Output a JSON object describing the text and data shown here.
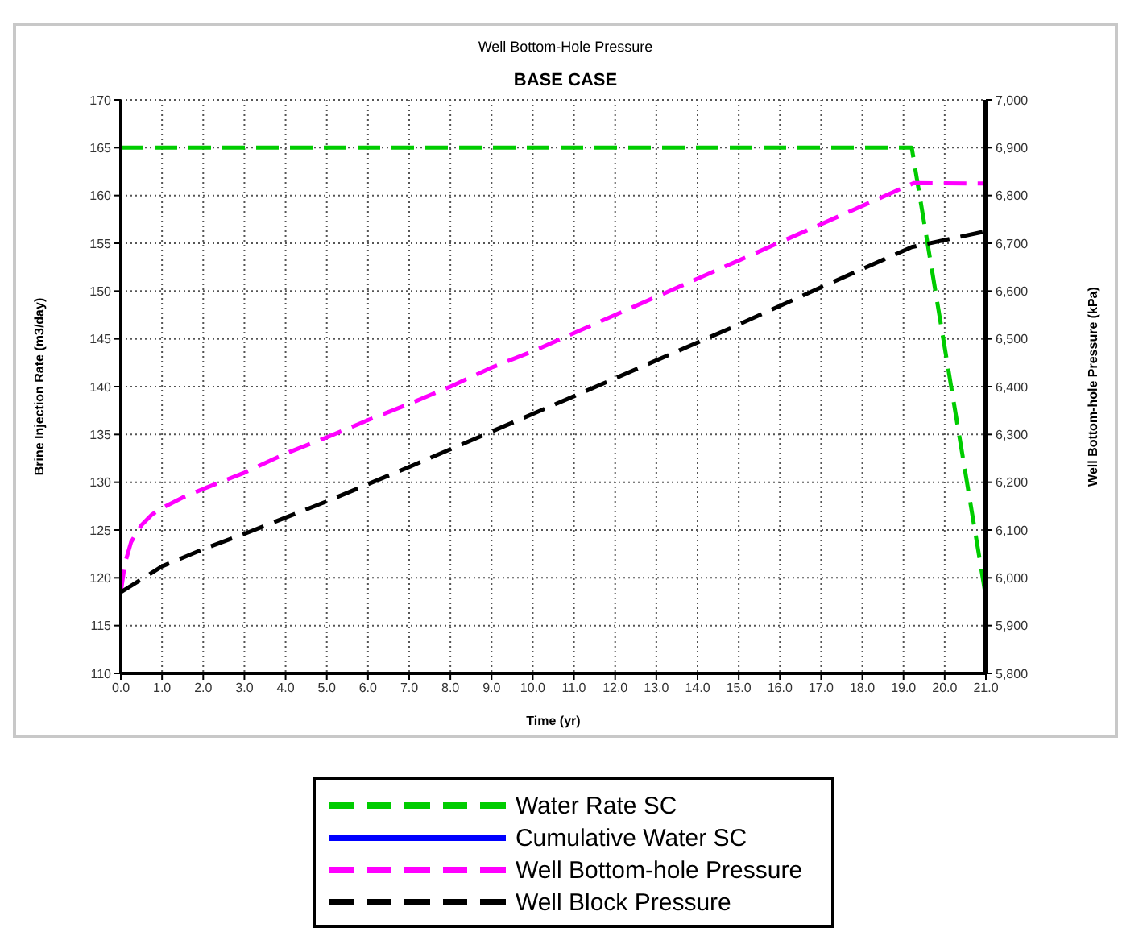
{
  "chart_data": {
    "type": "line",
    "title": "Well Bottom-Hole Pressure",
    "subtitle": "BASE CASE",
    "xlabel": "Time (yr)",
    "ylabel": "Brine Injection Rate (m3/day)",
    "y2label": "Well Bottom-hole Pressure (kPa)",
    "xlim": [
      0,
      21
    ],
    "xticks": [
      {
        "value": 0,
        "label": "0.0"
      },
      {
        "value": 1,
        "label": "1.0"
      },
      {
        "value": 2,
        "label": "2.0"
      },
      {
        "value": 3,
        "label": "3.0"
      },
      {
        "value": 4,
        "label": "4.0"
      },
      {
        "value": 5,
        "label": "5.0"
      },
      {
        "value": 6,
        "label": "6.0"
      },
      {
        "value": 7,
        "label": "7.0"
      },
      {
        "value": 8,
        "label": "8.0"
      },
      {
        "value": 9,
        "label": "9.0"
      },
      {
        "value": 10,
        "label": "10.0"
      },
      {
        "value": 11,
        "label": "11.0"
      },
      {
        "value": 12,
        "label": "12.0"
      },
      {
        "value": 13,
        "label": "13.0"
      },
      {
        "value": 14,
        "label": "14.0"
      },
      {
        "value": 15,
        "label": "15.0"
      },
      {
        "value": 16,
        "label": "16.0"
      },
      {
        "value": 17,
        "label": "17.0"
      },
      {
        "value": 18,
        "label": "18.0"
      },
      {
        "value": 19,
        "label": "19.0"
      },
      {
        "value": 20,
        "label": "20.0"
      },
      {
        "value": 21,
        "label": "21.0"
      }
    ],
    "ylim": [
      110,
      170
    ],
    "yticks": [
      110,
      115,
      120,
      125,
      130,
      135,
      140,
      145,
      150,
      155,
      160,
      165,
      170
    ],
    "y2lim": [
      5800,
      7000
    ],
    "y2ticks": [
      {
        "value": 5800,
        "label": "5,800"
      },
      {
        "value": 5900,
        "label": "5,900"
      },
      {
        "value": 6000,
        "label": "6,000"
      },
      {
        "value": 6100,
        "label": "6,100"
      },
      {
        "value": 6200,
        "label": "6,200"
      },
      {
        "value": 6300,
        "label": "6,300"
      },
      {
        "value": 6400,
        "label": "6,400"
      },
      {
        "value": 6500,
        "label": "6,500"
      },
      {
        "value": 6600,
        "label": "6,600"
      },
      {
        "value": 6700,
        "label": "6,700"
      },
      {
        "value": 6800,
        "label": "6,800"
      },
      {
        "value": 6900,
        "label": "6,900"
      },
      {
        "value": 7000,
        "label": "7,000"
      }
    ],
    "grid": true,
    "legend": "bottom",
    "marker": "none",
    "series": [
      {
        "name": "Water Rate SC",
        "color": "#00cc00",
        "line_style": "dashed",
        "x": [
          0,
          19.2,
          21
        ],
        "values": [
          165,
          165,
          118
        ]
      },
      {
        "name": "Cumulative Water SC",
        "color": "#0000ff",
        "line_style": "solid"
      },
      {
        "name": "Well Bottom-hole Pressure",
        "color": "#ff00ff",
        "line_style": "dashed",
        "axis": "y2",
        "x": [
          0,
          0.1,
          0.25,
          0.5,
          0.75,
          1,
          1.5,
          2,
          3,
          4,
          5,
          6,
          7,
          8,
          9,
          10,
          11,
          13,
          15,
          17,
          19.25,
          21
        ],
        "values": [
          5970,
          6030,
          6075,
          6110,
          6132,
          6146,
          6168,
          6186,
          6220,
          6260,
          6294,
          6330,
          6364,
          6400,
          6440,
          6474,
          6512,
          6588,
          6664,
          6740,
          6826,
          6825
        ]
      },
      {
        "name": "Well Block Pressure",
        "color": "#000000",
        "line_style": "dashed",
        "axis": "y2",
        "x": [
          0,
          1,
          2,
          3,
          5,
          7,
          9,
          11,
          13,
          15,
          17,
          19.2,
          21
        ],
        "values": [
          5970,
          6024,
          6060,
          6092,
          6160,
          6232,
          6306,
          6380,
          6455,
          6530,
          6608,
          6692,
          6725
        ]
      }
    ]
  }
}
